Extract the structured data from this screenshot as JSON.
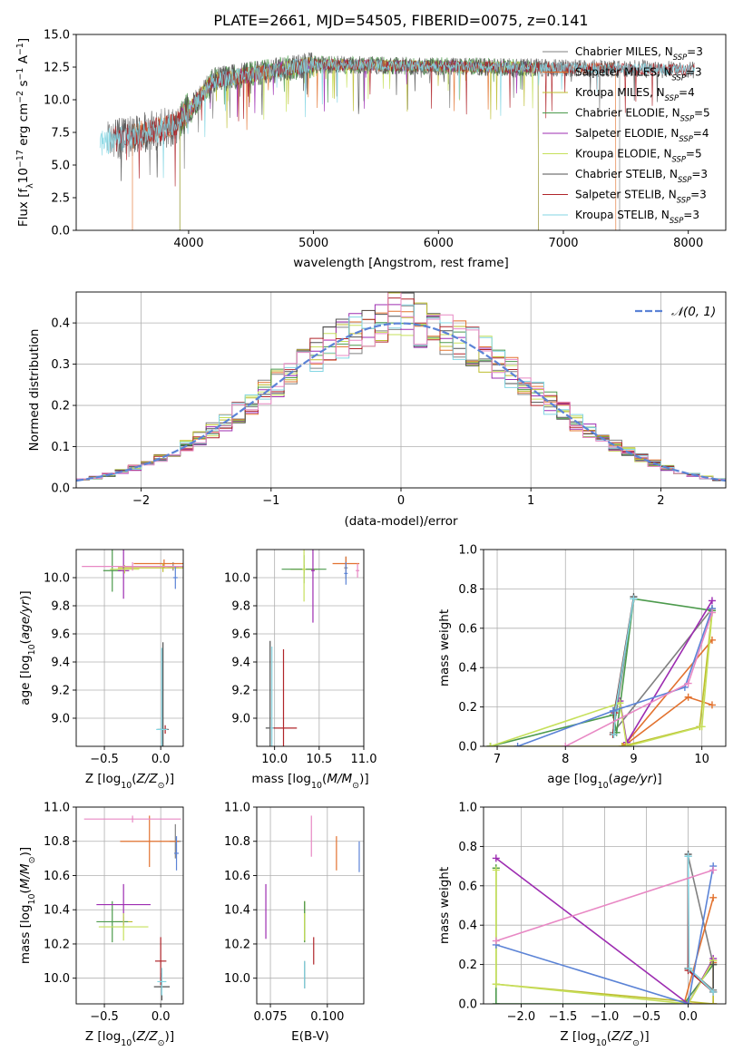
{
  "colors": {
    "axes": "#000000",
    "grid": "#b0b0b0",
    "palette": [
      "#808080",
      "#e2722f",
      "#bdbd2f",
      "#4c9a4c",
      "#9d2cb1",
      "#c6e05b",
      "#505050",
      "#b0252a",
      "#83d6e3",
      "#5b83d6",
      "#e888c4"
    ]
  },
  "chart_data": [
    {
      "id": "spectrum",
      "type": "line",
      "title": "PLATE=2661, MJD=54505, FIBERID=0075, z=0.141",
      "xlabel": "wavelength [Angstrom, rest frame]",
      "ylabel": "Flux [f_λ 10^-17 erg cm^-2 s^-1 A^-1]",
      "xlim": [
        3100,
        8300
      ],
      "ylim": [
        0,
        15
      ],
      "xticks": [
        "4000",
        "5000",
        "6000",
        "7000",
        "8000"
      ],
      "yticks": [
        "0.0",
        "2.5",
        "5.0",
        "7.5",
        "10.0",
        "12.5",
        "15.0"
      ],
      "grid": false,
      "legend_position": "upper-right",
      "series": [
        {
          "name": "Chabrier MILES, N_SSP=3",
          "color": "#808080",
          "x_range": [
            3350,
            7450
          ]
        },
        {
          "name": "Salpeter MILES, N_SSP=3",
          "color": "#e2722f",
          "x_range": [
            3550,
            7420
          ]
        },
        {
          "name": "Kroupa MILES, N_SSP=4",
          "color": "#bdbd2f",
          "x_range": [
            3930,
            6800
          ]
        },
        {
          "name": "Chabrier ELODIE, N_SSP=5",
          "color": "#4c9a4c",
          "x_range": [
            3930,
            6800
          ]
        },
        {
          "name": "Salpeter ELODIE, N_SSP=4",
          "color": "#9d2cb1",
          "x_range": [
            3930,
            6800
          ]
        },
        {
          "name": "Kroupa ELODIE, N_SSP=5",
          "color": "#c6e05b",
          "x_range": [
            3930,
            6800
          ]
        },
        {
          "name": "Chabrier STELIB, N_SSP=3",
          "color": "#505050",
          "x_range": [
            3400,
            8050
          ]
        },
        {
          "name": "Salpeter STELIB, N_SSP=3",
          "color": "#b0252a",
          "x_range": [
            3400,
            8050
          ]
        },
        {
          "name": "Kroupa STELIB, N_SSP=3",
          "color": "#83d6e3",
          "x_range": [
            3290,
            8050
          ]
        }
      ],
      "data_trend": {
        "start_flux": 6.7,
        "rise_to": 11.5,
        "plateau": 12.7,
        "end_flux": 12.3,
        "noise_sigma": 0.9
      }
    },
    {
      "id": "residuals",
      "type": "histogram",
      "xlabel": "(data-model)/error",
      "ylabel": "Normed distribution",
      "xlim": [
        -2.5,
        2.5
      ],
      "ylim": [
        0,
        0.475
      ],
      "xticks": [
        "−2",
        "−1",
        "0",
        "1",
        "2"
      ],
      "yticks": [
        "0.0",
        "0.1",
        "0.2",
        "0.3",
        "0.4"
      ],
      "grid": true,
      "legend_position": "upper-right",
      "bin_width": 0.1,
      "reference_curve": {
        "name": "𝒩(0, 1)",
        "color": "#5b83d6",
        "style": "dashed"
      }
    },
    {
      "id": "age-vs-Z",
      "type": "errorbar",
      "xlabel": "Z [log10(Z/Z⊙)]",
      "ylabel": "age [log10(age/yr)]",
      "xlim": [
        -0.75,
        0.2
      ],
      "ylim": [
        8.8,
        10.2
      ],
      "xticks": [
        "−0.5",
        "0.0"
      ],
      "yticks": [
        "9.0",
        "9.2",
        "9.4",
        "9.6",
        "9.8",
        "10.0"
      ],
      "grid": true,
      "points": [
        {
          "x": 0.11,
          "y": 10.08,
          "xerr": 0.05,
          "yerr": 0.03,
          "color": "#808080"
        },
        {
          "x": 0.03,
          "y": 10.1,
          "xerr": 0.27,
          "yerr": 0.03,
          "color": "#e2722f"
        },
        {
          "x": 0.02,
          "y": 10.07,
          "xerr": 0.4,
          "yerr": 0.03,
          "color": "#bdbd2f"
        },
        {
          "x": -0.43,
          "y": 10.05,
          "xerr": 0.08,
          "yerr": 0.15,
          "color": "#4c9a4c"
        },
        {
          "x": -0.33,
          "y": 10.05,
          "xerr": 0.05,
          "yerr": 0.2,
          "color": "#9d2cb1"
        },
        {
          "x": -0.32,
          "y": 10.06,
          "xerr": 0.13,
          "yerr": 0.03,
          "color": "#c6e05b"
        },
        {
          "x": 0.02,
          "y": 8.92,
          "xerr": 0.05,
          "yerr": 0.62,
          "color": "#505050"
        },
        {
          "x": 0.04,
          "y": 8.92,
          "xerr": 0.02,
          "yerr": 0.03,
          "color": "#b0252a"
        },
        {
          "x": 0.01,
          "y": 8.92,
          "xerr": 0.05,
          "yerr": 0.58,
          "color": "#83d6e3"
        },
        {
          "x": 0.13,
          "y": 10.0,
          "xerr": 0.02,
          "yerr": 0.08,
          "color": "#5b83d6"
        },
        {
          "x": -0.25,
          "y": 10.08,
          "xerr": 0.45,
          "yerr": 0.03,
          "color": "#e888c4"
        }
      ]
    },
    {
      "id": "age-vs-mass",
      "type": "errorbar",
      "xlabel": "mass [log10(M/M⊙)]",
      "ylabel": "",
      "xlim": [
        9.8,
        11.0
      ],
      "ylim": [
        8.8,
        10.2
      ],
      "xticks": [
        "10.0",
        "10.5",
        "11.0"
      ],
      "yticks": [
        "9.0",
        "9.2",
        "9.4",
        "9.6",
        "9.8",
        "10.0"
      ],
      "grid": true,
      "points": [
        {
          "x": 10.8,
          "y": 10.07,
          "xerr": 0.02,
          "yerr": 0.08,
          "color": "#808080"
        },
        {
          "x": 10.8,
          "y": 10.1,
          "xerr": 0.15,
          "yerr": 0.05,
          "color": "#e2722f"
        },
        {
          "x": 10.33,
          "y": 10.06,
          "xerr": 0.15,
          "yerr": 0.03,
          "color": "#bdbd2f"
        },
        {
          "x": 10.33,
          "y": 10.06,
          "xerr": 0.25,
          "yerr": 0.1,
          "color": "#4c9a4c"
        },
        {
          "x": 10.43,
          "y": 10.05,
          "xerr": 0.02,
          "yerr": 0.37,
          "color": "#9d2cb1"
        },
        {
          "x": 10.33,
          "y": 10.06,
          "xerr": 0.02,
          "yerr": 0.23,
          "color": "#c6e05b"
        },
        {
          "x": 9.95,
          "y": 8.93,
          "xerr": 0.05,
          "yerr": 0.62,
          "color": "#505050"
        },
        {
          "x": 10.1,
          "y": 8.93,
          "xerr": 0.15,
          "yerr": 0.56,
          "color": "#b0252a"
        },
        {
          "x": 9.97,
          "y": 8.93,
          "xerr": 0.02,
          "yerr": 0.58,
          "color": "#83d6e3"
        },
        {
          "x": 10.8,
          "y": 10.03,
          "xerr": 0.02,
          "yerr": 0.08,
          "color": "#5b83d6"
        },
        {
          "x": 10.93,
          "y": 10.05,
          "xerr": 0.02,
          "yerr": 0.05,
          "color": "#e888c4"
        }
      ]
    },
    {
      "id": "weight-vs-age",
      "type": "line",
      "xlabel": "age [log10(age/yr)]",
      "ylabel": "mass weight",
      "xlim": [
        6.8,
        10.35
      ],
      "ylim": [
        0,
        1
      ],
      "xticks": [
        "7",
        "8",
        "9",
        "10"
      ],
      "yticks": [
        "0.0",
        "0.2",
        "0.4",
        "0.6",
        "0.8",
        "1.0"
      ],
      "grid": true,
      "series": [
        {
          "color": "#808080",
          "x": [
            10.15,
            8.7,
            9.0
          ],
          "y": [
            0.7,
            0.07,
            0.75
          ]
        },
        {
          "color": "#e2722f",
          "x": [
            10.15,
            9.8,
            8.85,
            10.15
          ],
          "y": [
            0.21,
            0.25,
            0.0,
            0.54
          ]
        },
        {
          "color": "#bdbd2f",
          "x": [
            10.15,
            9.97,
            8.83,
            6.9
          ],
          "y": [
            0.69,
            0.1,
            0.0,
            0.0
          ]
        },
        {
          "color": "#4c9a4c",
          "x": [
            6.9,
            8.7,
            8.75,
            9.0,
            10.15
          ],
          "y": [
            0.0,
            0.16,
            0.07,
            0.75,
            0.69
          ]
        },
        {
          "color": "#9d2cb1",
          "x": [
            8.8,
            8.9,
            10.15
          ],
          "y": [
            0.23,
            0.02,
            0.74
          ]
        },
        {
          "color": "#c6e05b",
          "x": [
            6.9,
            8.8,
            8.9,
            10.0,
            10.15
          ],
          "y": [
            0.0,
            0.22,
            0.0,
            0.1,
            0.68
          ]
        },
        {
          "color": "#505050",
          "x": [
            8.7,
            8.72,
            9.0
          ],
          "y": [
            0.06,
            0.18,
            0.76
          ]
        },
        {
          "color": "#b0252a",
          "x": [
            8.7,
            8.72,
            9.0
          ],
          "y": [
            0.06,
            0.17,
            0.75
          ]
        },
        {
          "color": "#83d6e3",
          "x": [
            8.71,
            8.73,
            9.0
          ],
          "y": [
            0.06,
            0.18,
            0.75
          ]
        },
        {
          "color": "#5b83d6",
          "x": [
            7.3,
            8.7,
            9.75,
            10.15
          ],
          "y": [
            0.0,
            0.18,
            0.3,
            0.7
          ]
        },
        {
          "color": "#e888c4",
          "x": [
            8.0,
            9.8,
            10.15
          ],
          "y": [
            0.0,
            0.32,
            0.68
          ]
        }
      ]
    },
    {
      "id": "mass-vs-Z",
      "type": "errorbar",
      "xlabel": "Z [log10(Z/Z⊙)]",
      "ylabel": "mass [log10(M/M⊙)]",
      "xlim": [
        -0.75,
        0.2
      ],
      "ylim": [
        9.85,
        11.0
      ],
      "xticks": [
        "−0.5",
        "0.0"
      ],
      "yticks": [
        "10.0",
        "10.2",
        "10.4",
        "10.6",
        "10.8",
        "11.0"
      ],
      "grid": true,
      "points": [
        {
          "x": 0.13,
          "y": 10.8,
          "xerr": 0.05,
          "yerr": 0.1,
          "color": "#808080"
        },
        {
          "x": -0.1,
          "y": 10.8,
          "xerr": 0.26,
          "yerr": 0.15,
          "color": "#e2722f"
        },
        {
          "x": -0.33,
          "y": 10.33,
          "xerr": 0.08,
          "yerr": 0.03,
          "color": "#bdbd2f"
        },
        {
          "x": -0.43,
          "y": 10.33,
          "xerr": 0.14,
          "yerr": 0.12,
          "color": "#4c9a4c"
        },
        {
          "x": -0.33,
          "y": 10.43,
          "xerr": 0.24,
          "yerr": 0.12,
          "color": "#9d2cb1"
        },
        {
          "x": -0.33,
          "y": 10.3,
          "xerr": 0.22,
          "yerr": 0.08,
          "color": "#c6e05b"
        },
        {
          "x": 0.01,
          "y": 9.95,
          "xerr": 0.07,
          "yerr": 0.08,
          "color": "#505050"
        },
        {
          "x": 0.0,
          "y": 10.1,
          "xerr": 0.05,
          "yerr": 0.14,
          "color": "#b0252a"
        },
        {
          "x": 0.01,
          "y": 9.98,
          "xerr": 0.04,
          "yerr": 0.08,
          "color": "#83d6e3"
        },
        {
          "x": 0.14,
          "y": 10.73,
          "xerr": 0.02,
          "yerr": 0.1,
          "color": "#5b83d6"
        },
        {
          "x": -0.25,
          "y": 10.93,
          "xerr": 0.43,
          "yerr": 0.02,
          "color": "#e888c4"
        }
      ]
    },
    {
      "id": "mass-vs-EBV",
      "type": "errorbar",
      "xlabel": "E(B-V)",
      "ylabel": "",
      "xlim": [
        0.069,
        0.116
      ],
      "ylim": [
        9.85,
        11.0
      ],
      "xticks": [
        "0.075",
        "0.100"
      ],
      "yticks": [
        "10.0",
        "10.2",
        "10.4",
        "10.6",
        "10.8",
        "11.0"
      ],
      "grid": true,
      "points": [
        {
          "x": 0.09,
          "y": 10.33,
          "yerr": 0.12,
          "color": "#808080"
        },
        {
          "x": 0.104,
          "y": 10.73,
          "yerr": 0.1,
          "color": "#e2722f"
        },
        {
          "x": 0.09,
          "y": 10.33,
          "yerr": 0.12,
          "color": "#bdbd2f"
        },
        {
          "x": 0.09,
          "y": 10.33,
          "yerr": 0.12,
          "color": "#4c9a4c"
        },
        {
          "x": 0.073,
          "y": 10.39,
          "yerr": 0.16,
          "color": "#9d2cb1"
        },
        {
          "x": 0.09,
          "y": 10.3,
          "yerr": 0.08,
          "color": "#c6e05b"
        },
        {
          "x": 0.09,
          "y": 10.02,
          "yerr": 0.08,
          "color": "#505050"
        },
        {
          "x": 0.094,
          "y": 10.16,
          "yerr": 0.08,
          "color": "#b0252a"
        },
        {
          "x": 0.09,
          "y": 10.02,
          "yerr": 0.08,
          "color": "#83d6e3"
        },
        {
          "x": 0.114,
          "y": 10.71,
          "yerr": 0.09,
          "color": "#5b83d6"
        },
        {
          "x": 0.093,
          "y": 10.83,
          "yerr": 0.12,
          "color": "#e888c4"
        }
      ]
    },
    {
      "id": "weight-vs-Z",
      "type": "line",
      "xlabel": "Z [log10(Z/Z⊙)]",
      "ylabel": "mass weight",
      "xlim": [
        -2.45,
        0.45
      ],
      "ylim": [
        0,
        1
      ],
      "xticks": [
        "−2.0",
        "−1.5",
        "−1.0",
        "−0.5",
        "0.0"
      ],
      "yticks": [
        "0.0",
        "0.2",
        "0.4",
        "0.6",
        "0.8",
        "1.0"
      ],
      "grid": true,
      "series": [
        {
          "color": "#808080",
          "x": [
            0.3,
            0.0,
            0.0,
            0.3
          ],
          "y": [
            0.07,
            0.18,
            0.75,
            0.2
          ]
        },
        {
          "color": "#e2722f",
          "x": [
            0.3,
            0.3,
            -0.05,
            0.3
          ],
          "y": [
            0.21,
            0.0,
            0.0,
            0.54
          ]
        },
        {
          "color": "#bdbd2f",
          "x": [
            -2.3,
            -2.3,
            0.3,
            0.3
          ],
          "y": [
            0.69,
            0.1,
            0.0,
            0.22
          ]
        },
        {
          "color": "#4c9a4c",
          "x": [
            -2.3,
            -2.3,
            -0.05,
            0.3
          ],
          "y": [
            0.69,
            0.0,
            0.0,
            0.2
          ]
        },
        {
          "color": "#9d2cb1",
          "x": [
            -2.3,
            0.0,
            0.3
          ],
          "y": [
            0.74,
            0.0,
            0.23
          ]
        },
        {
          "color": "#c6e05b",
          "x": [
            -2.3,
            -2.3,
            0.0,
            0.3
          ],
          "y": [
            0.68,
            0.1,
            0.0,
            0.22
          ]
        },
        {
          "color": "#505050",
          "x": [
            0.0,
            0.0,
            0.3,
            0.3
          ],
          "y": [
            0.76,
            0.18,
            0.06,
            0.2
          ]
        },
        {
          "color": "#b0252a",
          "x": [
            0.0,
            0.0,
            0.3
          ],
          "y": [
            0.75,
            0.17,
            0.06
          ]
        },
        {
          "color": "#83d6e3",
          "x": [
            0.0,
            0.01,
            0.3
          ],
          "y": [
            0.75,
            0.18,
            0.06
          ]
        },
        {
          "color": "#5b83d6",
          "x": [
            -2.3,
            0.0,
            0.3
          ],
          "y": [
            0.3,
            0.0,
            0.7
          ]
        },
        {
          "color": "#e888c4",
          "x": [
            -2.3,
            0.3
          ],
          "y": [
            0.32,
            0.68
          ]
        }
      ]
    }
  ]
}
